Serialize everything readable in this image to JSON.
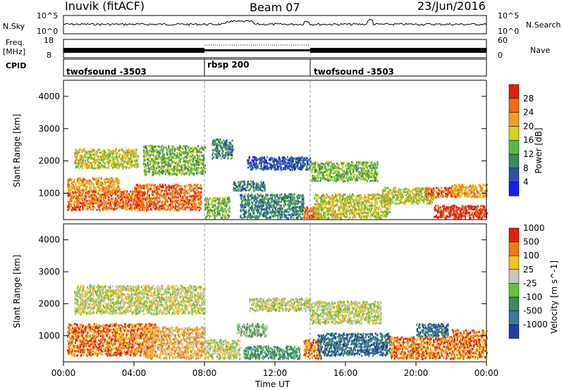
{
  "header": {
    "station": "Inuvik (fitACF)",
    "beam": "Beam 07",
    "date": "23/Jun/2016"
  },
  "noise_panel": {
    "left_label": "N.Sky",
    "right_label": "N.Search",
    "left_ticks": [
      "10^5",
      "10^0"
    ],
    "right_ticks": [
      "10^5",
      "10^0"
    ]
  },
  "freq_panel": {
    "left_label_line1": "Freq.",
    "left_label_line2": "[MHz]",
    "right_label": "Nave",
    "left_ticks": [
      "18",
      "8"
    ],
    "right_ticks": [
      "60",
      "0"
    ]
  },
  "cpid": {
    "label": "CPID",
    "segments": [
      {
        "name": "twofsound -3503",
        "start_hour": 0,
        "end_hour": 8
      },
      {
        "name": "rbsp 200",
        "start_hour": 8,
        "end_hour": 14
      },
      {
        "name": "twofsound -3503",
        "start_hour": 14,
        "end_hour": 24
      }
    ]
  },
  "x_axis": {
    "label": "Time UT",
    "ticks": [
      "00:00",
      "04:00",
      "08:00",
      "12:00",
      "16:00",
      "20:00",
      "00:00"
    ]
  },
  "chart_data": [
    {
      "type": "heatmap",
      "quantity": "Power",
      "ylabel": "Slant Range [km]",
      "yticks": [
        1000,
        2000,
        3000,
        4000
      ],
      "ylim": [
        180,
        4500
      ],
      "xlim_hours": [
        0,
        24
      ],
      "colorbar_label": "Power [dB]",
      "colorbar_ticks": [
        "4",
        "8",
        "12",
        "16",
        "20",
        "24",
        "28"
      ],
      "colors": [
        "#1a1aff",
        "#2f4fa8",
        "#3f8a5a",
        "#5ab94a",
        "#d8d024",
        "#f0a020",
        "#f06818",
        "#e02010"
      ],
      "echo_regions": [
        {
          "t0": 0.2,
          "t1": 3.2,
          "r0": 1100,
          "r1": 1500,
          "level": 5
        },
        {
          "t0": 0.2,
          "t1": 4.5,
          "r0": 500,
          "r1": 1100,
          "level": 6
        },
        {
          "t0": 4.0,
          "t1": 7.8,
          "r0": 500,
          "r1": 1300,
          "level": 6
        },
        {
          "t0": 0.6,
          "t1": 4.2,
          "r0": 1800,
          "r1": 2400,
          "level": 4
        },
        {
          "t0": 4.5,
          "t1": 8.0,
          "r0": 1600,
          "r1": 2500,
          "level": 3
        },
        {
          "t0": 8.4,
          "t1": 9.6,
          "r0": 2100,
          "r1": 2700,
          "level": 2
        },
        {
          "t0": 8.0,
          "t1": 9.4,
          "r0": 250,
          "r1": 900,
          "level": 3
        },
        {
          "t0": 9.6,
          "t1": 11.4,
          "r0": 1100,
          "r1": 1400,
          "level": 2
        },
        {
          "t0": 10.4,
          "t1": 14.0,
          "r0": 1750,
          "r1": 2150,
          "level": 1
        },
        {
          "t0": 10.0,
          "t1": 13.6,
          "r0": 250,
          "r1": 1000,
          "level": 2
        },
        {
          "t0": 13.6,
          "t1": 14.6,
          "r0": 250,
          "r1": 600,
          "level": 6
        },
        {
          "t0": 14.0,
          "t1": 17.8,
          "r0": 1400,
          "r1": 2000,
          "level": 3
        },
        {
          "t0": 14.2,
          "t1": 18.5,
          "r0": 250,
          "r1": 1000,
          "level": 4
        },
        {
          "t0": 18.0,
          "t1": 21.0,
          "r0": 700,
          "r1": 1200,
          "level": 4
        },
        {
          "t0": 21.0,
          "t1": 24.0,
          "r0": 250,
          "r1": 650,
          "level": 7
        },
        {
          "t0": 20.5,
          "t1": 22.5,
          "r0": 900,
          "r1": 1200,
          "level": 6
        },
        {
          "t0": 22.0,
          "t1": 24.0,
          "r0": 900,
          "r1": 1300,
          "level": 5
        }
      ]
    },
    {
      "type": "heatmap",
      "quantity": "Velocity",
      "ylabel": "Slant Range [km]",
      "yticks": [
        1000,
        2000,
        3000,
        4000
      ],
      "ylim": [
        180,
        4500
      ],
      "xlim_hours": [
        0,
        24
      ],
      "colorbar_label": "Velocity [m s^-1]",
      "colorbar_ticks": [
        "1000",
        "500",
        "100",
        "25",
        "-25",
        "-100",
        "-500",
        "-1000"
      ],
      "colors": [
        "#2040a0",
        "#3a7aa0",
        "#3f8a5a",
        "#6ac040",
        "#c8c8c0",
        "#f0c020",
        "#f07818",
        "#e02010"
      ],
      "echo_regions": [
        {
          "t0": 0.6,
          "t1": 8.0,
          "r0": 1700,
          "r1": 2600,
          "level": 4
        },
        {
          "t0": 0.2,
          "t1": 5.2,
          "r0": 400,
          "r1": 1400,
          "level": 6
        },
        {
          "t0": 4.5,
          "t1": 8.0,
          "r0": 300,
          "r1": 1300,
          "level": 5
        },
        {
          "t0": 8.0,
          "t1": 10.0,
          "r0": 300,
          "r1": 900,
          "level": 4
        },
        {
          "t0": 9.8,
          "t1": 11.5,
          "r0": 1000,
          "r1": 1400,
          "level": 3
        },
        {
          "t0": 10.5,
          "t1": 14.0,
          "r0": 1800,
          "r1": 2200,
          "level": 4
        },
        {
          "t0": 10.2,
          "t1": 13.4,
          "r0": 300,
          "r1": 700,
          "level": 2
        },
        {
          "t0": 13.6,
          "t1": 14.6,
          "r0": 300,
          "r1": 900,
          "level": 6
        },
        {
          "t0": 14.0,
          "t1": 18.0,
          "r0": 1400,
          "r1": 2100,
          "level": 4
        },
        {
          "t0": 14.4,
          "t1": 18.5,
          "r0": 400,
          "r1": 1100,
          "level": 1
        },
        {
          "t0": 18.5,
          "t1": 22.0,
          "r0": 300,
          "r1": 1000,
          "level": 6
        },
        {
          "t0": 20.0,
          "t1": 21.8,
          "r0": 1000,
          "r1": 1400,
          "level": 1
        },
        {
          "t0": 22.0,
          "t1": 24.0,
          "r0": 300,
          "r1": 1200,
          "level": 6
        }
      ]
    }
  ]
}
